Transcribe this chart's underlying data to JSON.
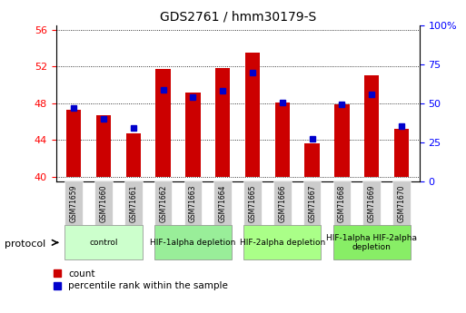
{
  "title": "GDS2761 / hmm30179-S",
  "samples": [
    "GSM71659",
    "GSM71660",
    "GSM71661",
    "GSM71662",
    "GSM71663",
    "GSM71664",
    "GSM71665",
    "GSM71666",
    "GSM71667",
    "GSM71668",
    "GSM71669",
    "GSM71670"
  ],
  "count_values": [
    47.3,
    46.7,
    44.7,
    51.7,
    49.2,
    51.8,
    53.5,
    48.1,
    43.6,
    47.9,
    51.0,
    45.2
  ],
  "percentile_values": [
    47.5,
    46.3,
    45.3,
    49.5,
    48.7,
    49.4,
    51.3,
    48.1,
    44.1,
    47.9,
    49.0,
    45.5
  ],
  "ylim_left": [
    39.5,
    56.5
  ],
  "ylim_right": [
    0,
    100
  ],
  "yticks_left": [
    40,
    44,
    48,
    52,
    56
  ],
  "yticks_right": [
    0,
    25,
    50,
    75,
    100
  ],
  "ytick_labels_right": [
    "0",
    "25",
    "50",
    "75",
    "100%"
  ],
  "bar_color": "#cc0000",
  "percentile_color": "#0000cc",
  "bar_width": 0.5,
  "grid_color": "#000000",
  "protocol_groups": [
    {
      "label": "control",
      "start": 0,
      "end": 2,
      "color": "#ccffcc"
    },
    {
      "label": "HIF-1alpha depletion",
      "start": 3,
      "end": 5,
      "color": "#99ee99"
    },
    {
      "label": "HIF-2alpha depletion",
      "start": 6,
      "end": 8,
      "color": "#aaff88"
    },
    {
      "label": "HIF-1alpha HIF-2alpha\ndepletion",
      "start": 9,
      "end": 11,
      "color": "#88ee66"
    }
  ],
  "protocol_label": "protocol",
  "legend_count_label": "count",
  "legend_percentile_label": "percentile rank within the sample",
  "tick_area_color": "#cccccc",
  "spine_color": "#888888",
  "base_value": 40
}
